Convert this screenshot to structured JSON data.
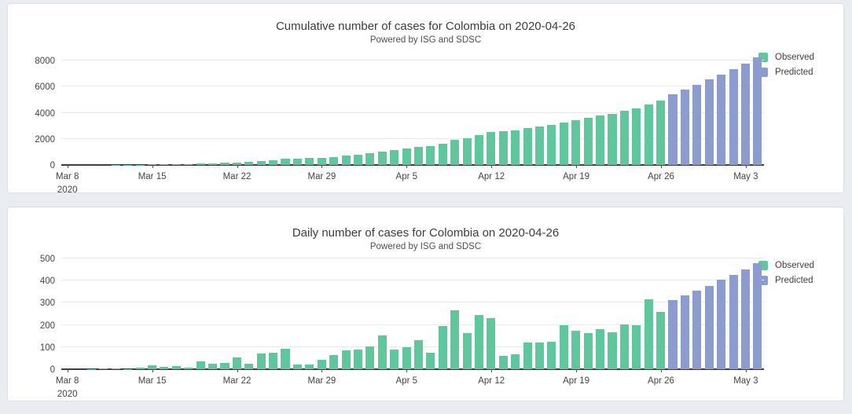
{
  "colors": {
    "observed": "#60c69b",
    "predicted": "#8d9cce",
    "background": "#e9ecf1",
    "card_background": "#ffffff",
    "grid": "#e9e9e9",
    "axis": "#3f3f3f"
  },
  "chart_data": [
    {
      "type": "bar",
      "title": "Cumulative number of cases for Colombia on 2020-04-26",
      "subtitle": "Powered by ISG and SDSC",
      "ylabel": "",
      "xlabel": "",
      "ylim": [
        0,
        8720
      ],
      "y_ticks": [
        0,
        2000,
        4000,
        6000,
        8000
      ],
      "grid": true,
      "legend_position": "top-right",
      "legend": [
        {
          "label": "Observed",
          "color_key": "observed"
        },
        {
          "label": "Predicted",
          "color_key": "predicted"
        }
      ],
      "x_ticks": [
        {
          "index": 0,
          "lines": [
            "Mar 8",
            "2020"
          ]
        },
        {
          "index": 7,
          "lines": [
            "Mar 15"
          ]
        },
        {
          "index": 14,
          "lines": [
            "Mar 22"
          ]
        },
        {
          "index": 21,
          "lines": [
            "Mar 29"
          ]
        },
        {
          "index": 28,
          "lines": [
            "Apr 5"
          ]
        },
        {
          "index": 35,
          "lines": [
            "Apr 12"
          ]
        },
        {
          "index": 42,
          "lines": [
            "Apr 19"
          ]
        },
        {
          "index": 49,
          "lines": [
            "Apr 26"
          ]
        },
        {
          "index": 56,
          "lines": [
            "May 3"
          ]
        }
      ],
      "series": [
        {
          "name": "Observed",
          "values": [
            0,
            0,
            1,
            3,
            8,
            9,
            15,
            32,
            42,
            55,
            63,
            100,
            125,
            155,
            207,
            232,
            304,
            378,
            472,
            493,
            513,
            556,
            619,
            705,
            794,
            898,
            1049,
            1137,
            1238,
            1369,
            1444,
            1640,
            1907,
            2070,
            2316,
            2548,
            2608,
            2677,
            2799,
            2919,
            3044,
            3244,
            3419,
            3582,
            3763,
            3930,
            4132,
            4331,
            4646,
            4904
          ]
        },
        {
          "name": "Predicted",
          "values": [
            5430,
            5800,
            6160,
            6540,
            6940,
            7320,
            7740,
            8230
          ]
        }
      ]
    },
    {
      "type": "bar",
      "title": "Daily number of cases for Colombia on 2020-04-26",
      "subtitle": "Powered by ISG and SDSC",
      "ylabel": "",
      "xlabel": "",
      "ylim": [
        0,
        525
      ],
      "y_ticks": [
        0,
        100,
        200,
        300,
        400,
        500
      ],
      "grid": true,
      "legend_position": "top-right",
      "legend": [
        {
          "label": "Observed",
          "color_key": "observed"
        },
        {
          "label": "Predicted",
          "color_key": "predicted"
        }
      ],
      "x_ticks": [
        {
          "index": 0,
          "lines": [
            "Mar 8",
            "2020"
          ]
        },
        {
          "index": 7,
          "lines": [
            "Mar 15"
          ]
        },
        {
          "index": 14,
          "lines": [
            "Mar 22"
          ]
        },
        {
          "index": 21,
          "lines": [
            "Mar 29"
          ]
        },
        {
          "index": 28,
          "lines": [
            "Apr 5"
          ]
        },
        {
          "index": 35,
          "lines": [
            "Apr 12"
          ]
        },
        {
          "index": 42,
          "lines": [
            "Apr 19"
          ]
        },
        {
          "index": 49,
          "lines": [
            "Apr 26"
          ]
        },
        {
          "index": 56,
          "lines": [
            "May 3"
          ]
        }
      ],
      "series": [
        {
          "name": "Observed",
          "values": [
            0,
            0,
            1,
            2,
            5,
            1,
            6,
            17,
            10,
            13,
            8,
            37,
            25,
            30,
            52,
            25,
            72,
            74,
            94,
            21,
            20,
            43,
            63,
            86,
            89,
            104,
            151,
            88,
            101,
            131,
            75,
            196,
            267,
            163,
            246,
            232,
            60,
            69,
            122,
            120,
            125,
            200,
            175,
            163,
            181,
            167,
            202,
            199,
            315,
            258
          ]
        },
        {
          "name": "Predicted",
          "values": [
            312,
            335,
            355,
            377,
            404,
            426,
            452,
            480
          ]
        }
      ]
    }
  ]
}
